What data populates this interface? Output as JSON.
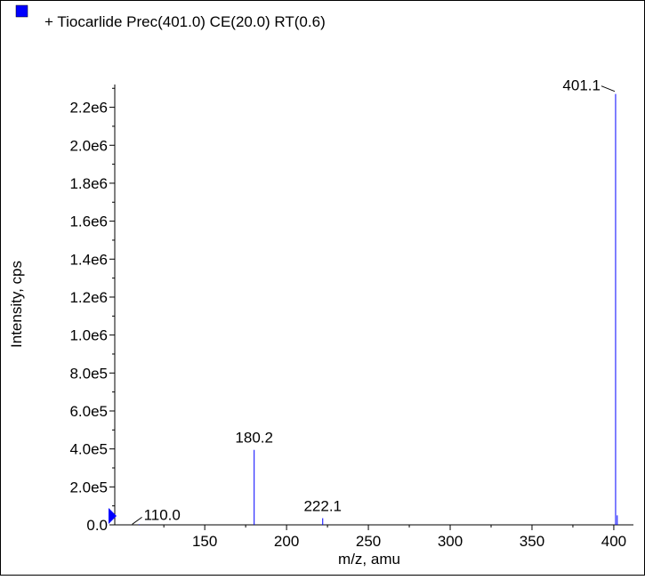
{
  "chart_data": {
    "type": "bar",
    "title": "+ Tiocarlide Prec(401.0) CE(20.0) RT(0.6)",
    "xlabel": "m/z, amu",
    "ylabel": "Intensity, cps",
    "xlim": [
      95,
      412
    ],
    "ylim": [
      0,
      2320000
    ],
    "xticks": [
      150,
      200,
      250,
      300,
      350,
      400
    ],
    "xtick_labels": [
      "150",
      "200",
      "250",
      "300",
      "350",
      "400"
    ],
    "yticks": [
      0,
      200000,
      400000,
      600000,
      800000,
      1000000,
      1200000,
      1400000,
      1600000,
      1800000,
      2000000,
      2200000
    ],
    "ytick_labels": [
      "0.0",
      "2.0e5",
      "4.0e5",
      "6.0e5",
      "8.0e5",
      "1.0e6",
      "1.2e6",
      "1.4e6",
      "1.6e6",
      "1.8e6",
      "2.0e6",
      "2.2e6"
    ],
    "series_color": "#0000ff",
    "peaks": [
      {
        "mz": 110.0,
        "intensity": 3000
      },
      {
        "mz": 180.2,
        "intensity": 395000
      },
      {
        "mz": 222.1,
        "intensity": 35000
      },
      {
        "mz": 401.1,
        "intensity": 2270000
      },
      {
        "mz": 402.1,
        "intensity": 50000
      }
    ],
    "annotations": [
      {
        "text": "401.1",
        "mz": 401.1,
        "intensity": 2270000
      },
      {
        "text": "180.2",
        "mz": 180.2,
        "intensity": 395000
      },
      {
        "text": "222.1",
        "mz": 222.1,
        "intensity": 35000
      },
      {
        "text": "110.0",
        "mz": 110.0,
        "intensity": 3000
      }
    ]
  }
}
